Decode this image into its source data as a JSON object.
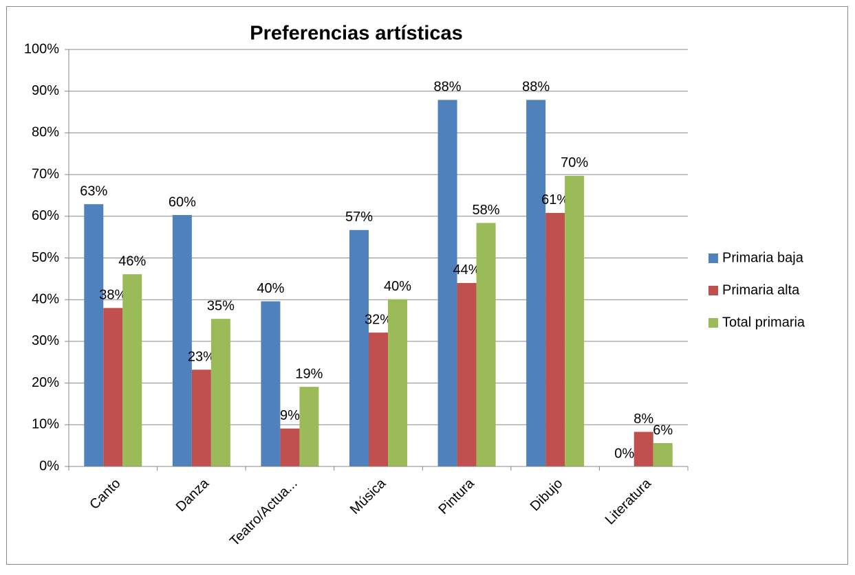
{
  "chart_data": {
    "type": "bar",
    "title": "Preferencias artísticas",
    "categories": [
      "Canto",
      "Danza",
      "Teatro/Actua...",
      "Música",
      "Pintura",
      "Dibujo",
      "Literatura"
    ],
    "series": [
      {
        "name": "Primaria baja",
        "color": "#4f81bd",
        "values": [
          62.9,
          60.3,
          39.6,
          56.7,
          87.9,
          87.9,
          0
        ],
        "value_labels": [
          "63%",
          "60%",
          "40%",
          "57%",
          "88%",
          "88%",
          "0%"
        ]
      },
      {
        "name": "Primaria alta",
        "color": "#c0504d",
        "values": [
          38.0,
          23.2,
          9.1,
          32.1,
          44.0,
          60.8,
          8.3
        ],
        "value_labels": [
          "38%",
          "23%",
          "9%",
          "32%",
          "44%",
          "61%",
          "8%"
        ]
      },
      {
        "name": "Total primaria",
        "color": "#9bbb59",
        "values": [
          46.1,
          35.4,
          19.1,
          40.1,
          58.4,
          69.7,
          5.6
        ],
        "value_labels": [
          "46%",
          "35%",
          "19%",
          "40%",
          "58%",
          "70%",
          "6%"
        ]
      }
    ],
    "ylim": [
      0,
      100
    ],
    "yticks": [
      {
        "value": 0,
        "label": "0%"
      },
      {
        "value": 10,
        "label": "10%"
      },
      {
        "value": 20,
        "label": "20%"
      },
      {
        "value": 30,
        "label": "30%"
      },
      {
        "value": 40,
        "label": "40%"
      },
      {
        "value": 50,
        "label": "50%"
      },
      {
        "value": 60,
        "label": "60%"
      },
      {
        "value": 70,
        "label": "70%"
      },
      {
        "value": 80,
        "label": "80%"
      },
      {
        "value": 90,
        "label": "90%"
      },
      {
        "value": 100,
        "label": "100%"
      }
    ],
    "grid": true,
    "legend": "right"
  }
}
